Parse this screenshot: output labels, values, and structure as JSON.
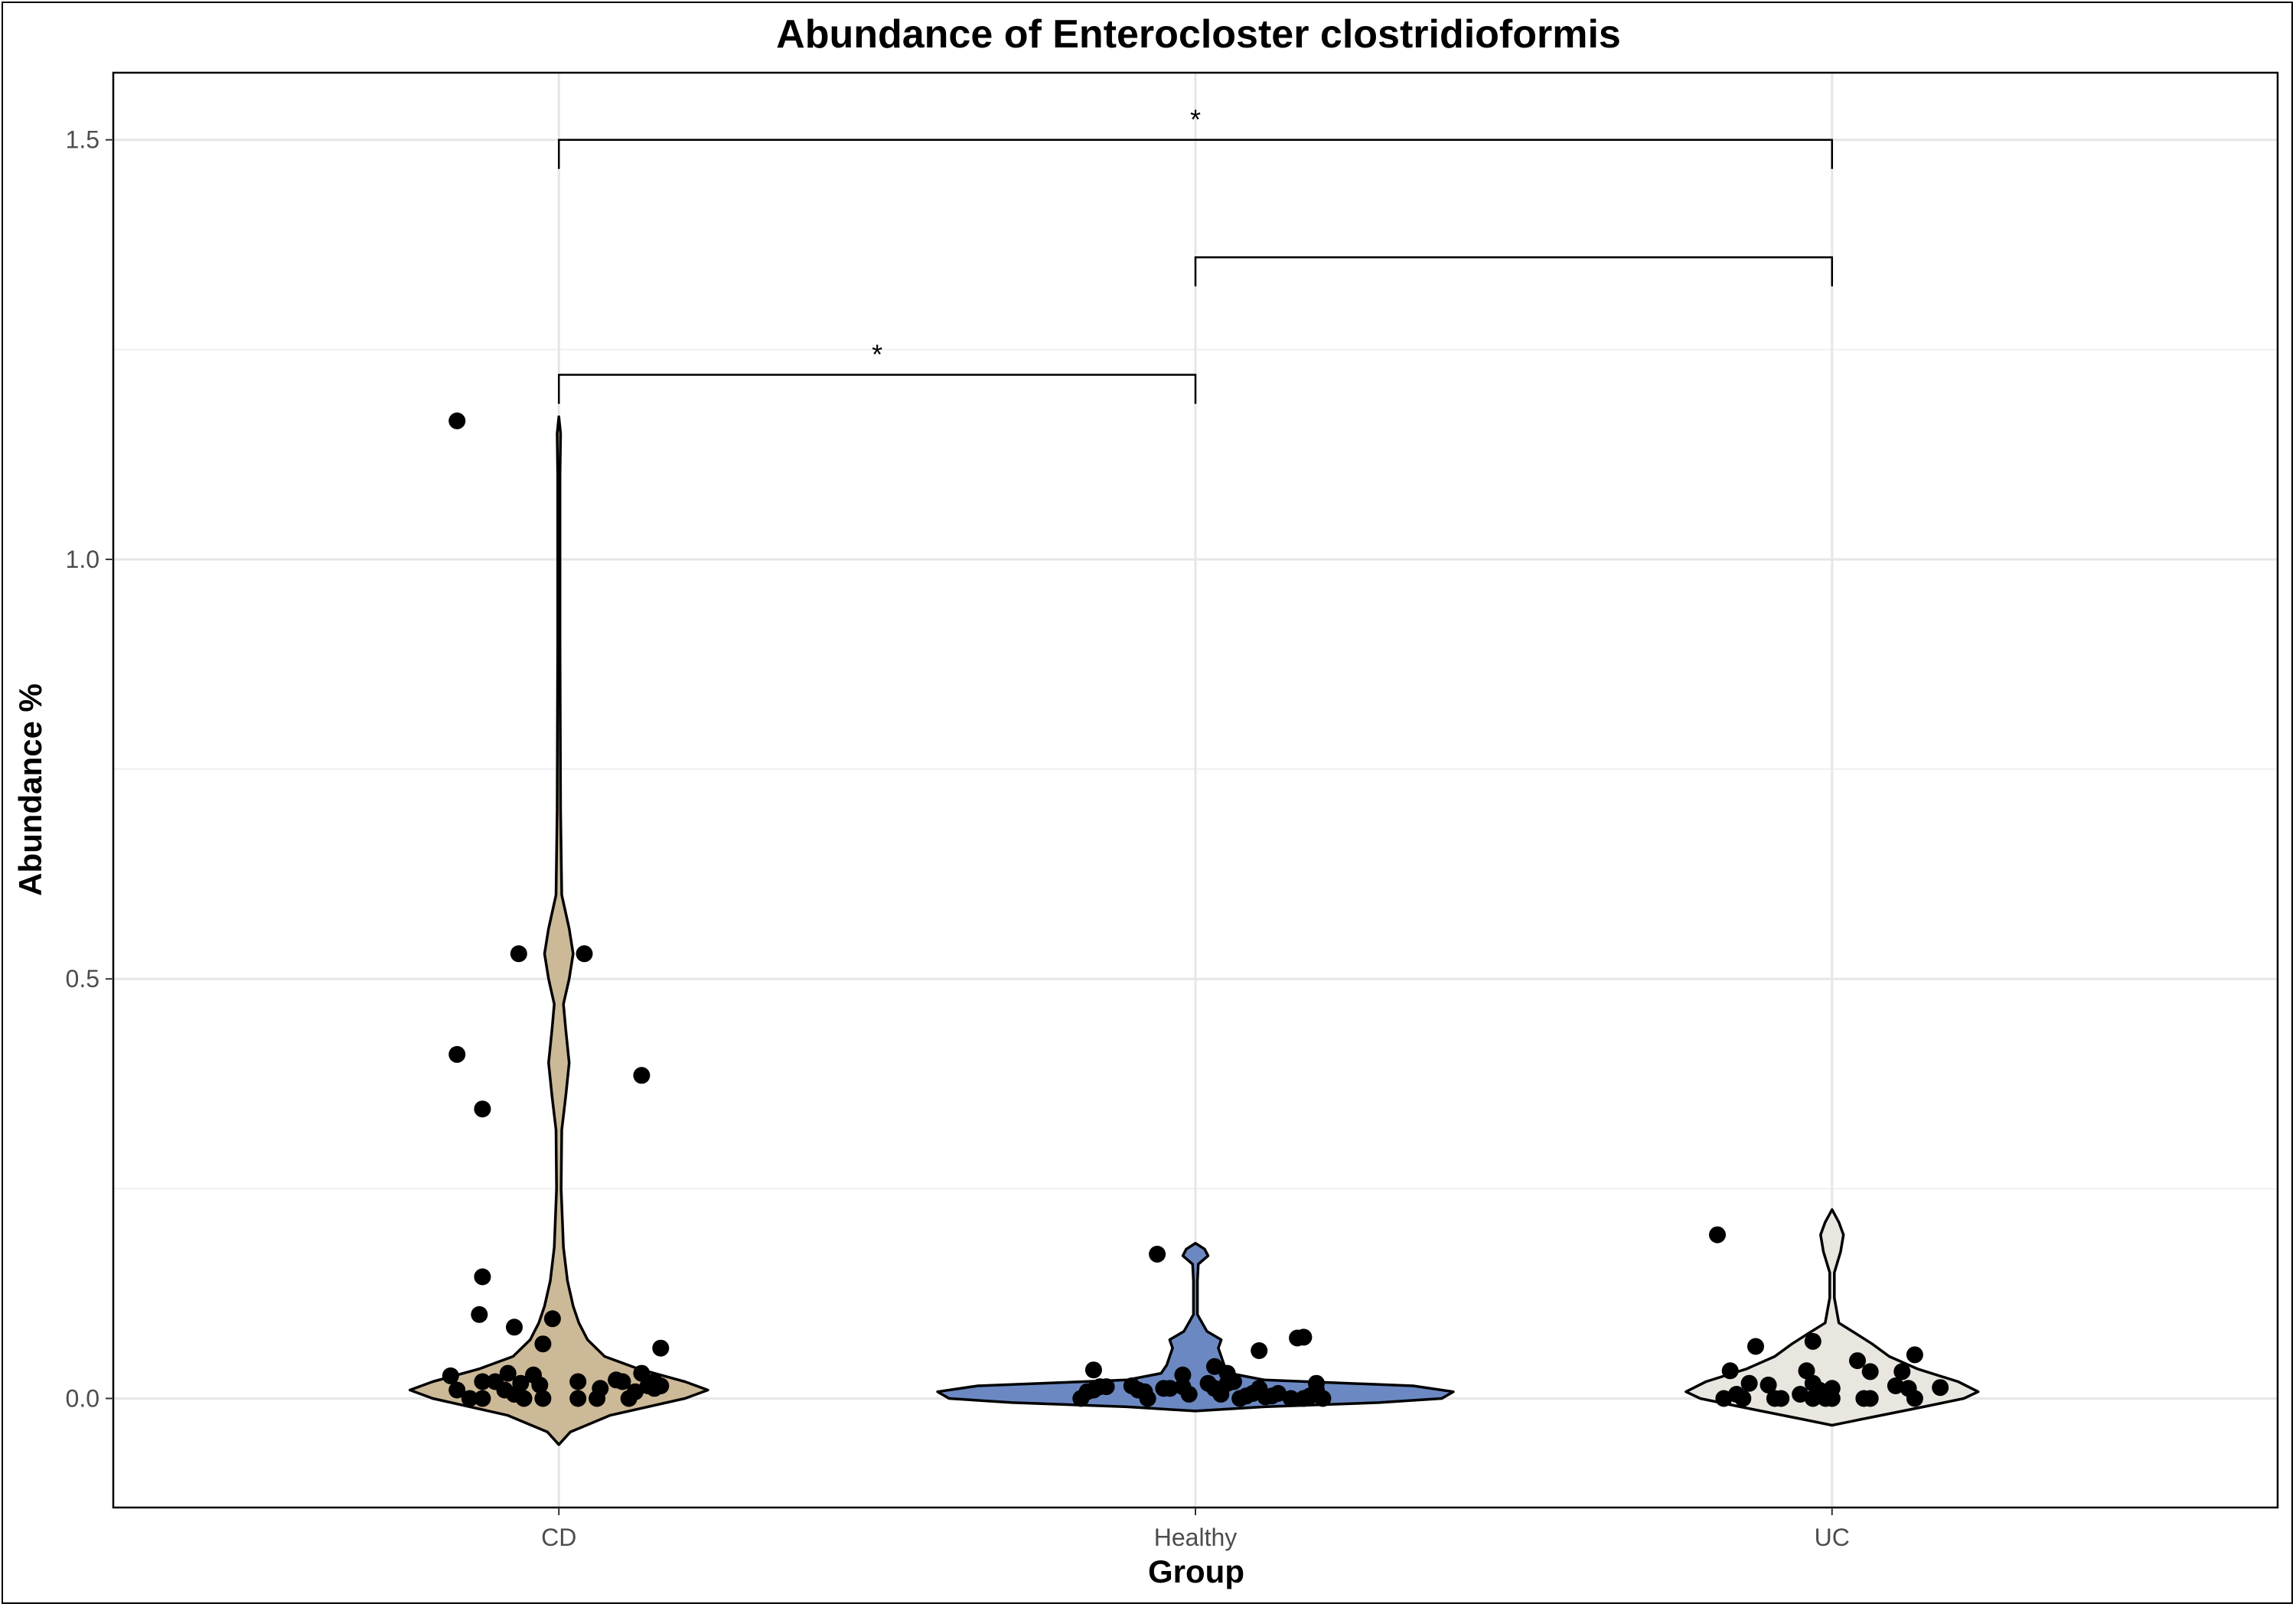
{
  "chart_data": {
    "type": "violin",
    "title": "Abundance of Enterocloster clostridioformis",
    "xlabel": "Group",
    "ylabel": "Abundance %",
    "categories": [
      "CD",
      "Healthy",
      "UC"
    ],
    "ylim": [
      -0.13,
      1.58
    ],
    "yticks": [
      0.0,
      0.5,
      1.0,
      1.5
    ],
    "ytick_labels": [
      "0.0",
      "0.5",
      "1.0",
      "1.5"
    ],
    "grid": true,
    "legend": "none",
    "colors": {
      "CD": "#ccb997",
      "Healthy": "#6b88c2",
      "UC": "#e8e6df"
    },
    "groups": [
      {
        "name": "CD",
        "fill": "#ccb997",
        "violin_min": -0.055,
        "violin_max": 1.17,
        "density": [
          [
            -0.055,
            0.0
          ],
          [
            -0.04,
            0.02
          ],
          [
            -0.02,
            0.09
          ],
          [
            0.0,
            0.22
          ],
          [
            0.01,
            0.26
          ],
          [
            0.02,
            0.22
          ],
          [
            0.035,
            0.14
          ],
          [
            0.05,
            0.08
          ],
          [
            0.07,
            0.05
          ],
          [
            0.09,
            0.035
          ],
          [
            0.11,
            0.025
          ],
          [
            0.14,
            0.015
          ],
          [
            0.18,
            0.008
          ],
          [
            0.25,
            0.004
          ],
          [
            0.32,
            0.005
          ],
          [
            0.36,
            0.012
          ],
          [
            0.4,
            0.018
          ],
          [
            0.44,
            0.012
          ],
          [
            0.47,
            0.008
          ],
          [
            0.5,
            0.018
          ],
          [
            0.53,
            0.025
          ],
          [
            0.56,
            0.018
          ],
          [
            0.6,
            0.005
          ],
          [
            0.7,
            0.003
          ],
          [
            0.9,
            0.002
          ],
          [
            1.1,
            0.002
          ],
          [
            1.15,
            0.003
          ],
          [
            1.17,
            0.0
          ]
        ],
        "points": [
          [
            -0.16,
            1.165
          ],
          [
            -0.063,
            0.53
          ],
          [
            0.04,
            0.53
          ],
          [
            -0.16,
            0.41
          ],
          [
            -0.12,
            0.345
          ],
          [
            0.13,
            0.385
          ],
          [
            -0.12,
            0.145
          ],
          [
            -0.125,
            0.1
          ],
          [
            -0.07,
            0.085
          ],
          [
            -0.01,
            0.095
          ],
          [
            -0.025,
            0.065
          ],
          [
            0.16,
            0.06
          ],
          [
            -0.17,
            0.027
          ],
          [
            -0.16,
            0.01
          ],
          [
            -0.14,
            0.0
          ],
          [
            -0.12,
            0.02
          ],
          [
            -0.12,
            0.0
          ],
          [
            -0.1,
            0.02
          ],
          [
            -0.085,
            0.01
          ],
          [
            -0.08,
            0.03
          ],
          [
            -0.07,
            0.005
          ],
          [
            -0.06,
            0.018
          ],
          [
            -0.055,
            0.0
          ],
          [
            -0.04,
            0.028
          ],
          [
            -0.03,
            0.016
          ],
          [
            -0.025,
            0.0
          ],
          [
            0.03,
            0.02
          ],
          [
            0.03,
            0.0
          ],
          [
            0.06,
            0.0
          ],
          [
            0.065,
            0.012
          ],
          [
            0.09,
            0.022
          ],
          [
            0.1,
            0.02
          ],
          [
            0.11,
            0.0
          ],
          [
            0.12,
            0.008
          ],
          [
            0.13,
            0.03
          ],
          [
            0.14,
            0.015
          ],
          [
            0.15,
            0.02
          ],
          [
            0.15,
            0.012
          ],
          [
            0.16,
            0.015
          ]
        ]
      },
      {
        "name": "Healthy",
        "fill": "#6b88c2",
        "violin_min": -0.015,
        "violin_max": 0.185,
        "density": [
          [
            -0.015,
            0.0
          ],
          [
            -0.01,
            0.12
          ],
          [
            -0.005,
            0.32
          ],
          [
            0.0,
            0.43
          ],
          [
            0.008,
            0.45
          ],
          [
            0.015,
            0.38
          ],
          [
            0.022,
            0.12
          ],
          [
            0.03,
            0.06
          ],
          [
            0.04,
            0.05
          ],
          [
            0.05,
            0.045
          ],
          [
            0.06,
            0.04
          ],
          [
            0.07,
            0.045
          ],
          [
            0.08,
            0.02
          ],
          [
            0.1,
            0.0035
          ],
          [
            0.14,
            0.0035
          ],
          [
            0.16,
            0.005
          ],
          [
            0.17,
            0.022
          ],
          [
            0.178,
            0.016
          ],
          [
            0.185,
            0.0
          ]
        ],
        "points": [
          [
            -0.06,
            0.172
          ],
          [
            0.16,
            0.072
          ],
          [
            0.17,
            0.073
          ],
          [
            0.1,
            0.057
          ],
          [
            -0.16,
            0.034
          ],
          [
            0.03,
            0.038
          ],
          [
            0.05,
            0.03
          ],
          [
            -0.02,
            0.028
          ],
          [
            -0.18,
            0.0
          ],
          [
            -0.17,
            0.008
          ],
          [
            -0.16,
            0.01
          ],
          [
            -0.15,
            0.014
          ],
          [
            -0.14,
            0.014
          ],
          [
            -0.1,
            0.015
          ],
          [
            -0.09,
            0.01
          ],
          [
            -0.08,
            0.008
          ],
          [
            -0.075,
            0.0
          ],
          [
            -0.05,
            0.012
          ],
          [
            -0.04,
            0.012
          ],
          [
            -0.02,
            0.014
          ],
          [
            -0.01,
            0.005
          ],
          [
            0.02,
            0.018
          ],
          [
            0.03,
            0.012
          ],
          [
            0.04,
            0.005
          ],
          [
            0.05,
            0.018
          ],
          [
            0.06,
            0.02
          ],
          [
            0.07,
            0.0
          ],
          [
            0.08,
            0.003
          ],
          [
            0.09,
            0.006
          ],
          [
            0.1,
            0.012
          ],
          [
            0.11,
            0.002
          ],
          [
            0.12,
            0.003
          ],
          [
            0.13,
            0.006
          ],
          [
            0.15,
            0.0
          ],
          [
            0.17,
            0.0
          ],
          [
            0.18,
            0.003
          ],
          [
            0.19,
            0.01
          ],
          [
            0.19,
            0.018
          ],
          [
            0.2,
            0.0
          ]
        ]
      },
      {
        "name": "UC",
        "fill": "#e8e6df",
        "violin_min": -0.032,
        "violin_max": 0.225,
        "density": [
          [
            -0.032,
            0.0
          ],
          [
            -0.025,
            0.05
          ],
          [
            -0.01,
            0.16
          ],
          [
            0.0,
            0.23
          ],
          [
            0.008,
            0.255
          ],
          [
            0.02,
            0.22
          ],
          [
            0.035,
            0.15
          ],
          [
            0.05,
            0.1
          ],
          [
            0.065,
            0.07
          ],
          [
            0.078,
            0.04
          ],
          [
            0.09,
            0.012
          ],
          [
            0.12,
            0.004
          ],
          [
            0.15,
            0.004
          ],
          [
            0.175,
            0.015
          ],
          [
            0.195,
            0.02
          ],
          [
            0.21,
            0.012
          ],
          [
            0.225,
            0.0
          ]
        ],
        "points": [
          [
            -0.18,
            0.195
          ],
          [
            -0.12,
            0.062
          ],
          [
            -0.03,
            0.068
          ],
          [
            0.13,
            0.052
          ],
          [
            0.04,
            0.045
          ],
          [
            -0.16,
            0.033
          ],
          [
            -0.04,
            0.033
          ],
          [
            0.06,
            0.032
          ],
          [
            0.11,
            0.032
          ],
          [
            -0.13,
            0.018
          ],
          [
            -0.1,
            0.016
          ],
          [
            -0.03,
            0.018
          ],
          [
            -0.02,
            0.01
          ],
          [
            -0.01,
            0.006
          ],
          [
            0.0,
            0.012
          ],
          [
            0.1,
            0.015
          ],
          [
            0.12,
            0.012
          ],
          [
            0.17,
            0.013
          ],
          [
            -0.17,
            0.0
          ],
          [
            -0.15,
            0.005
          ],
          [
            -0.14,
            0.0
          ],
          [
            -0.09,
            0.0
          ],
          [
            -0.08,
            0.0
          ],
          [
            -0.05,
            0.005
          ],
          [
            -0.03,
            0.0
          ],
          [
            -0.01,
            0.0
          ],
          [
            0.0,
            0.0
          ],
          [
            0.05,
            0.0
          ],
          [
            0.06,
            0.0
          ],
          [
            0.13,
            0.0
          ]
        ]
      }
    ],
    "comparisons": [
      {
        "from": "CD",
        "to": "Healthy",
        "y": 1.22,
        "label": "*"
      },
      {
        "from": "Healthy",
        "to": "UC",
        "y": 1.36,
        "label": ""
      },
      {
        "from": "CD",
        "to": "UC",
        "y": 1.5,
        "label": "*"
      }
    ]
  }
}
